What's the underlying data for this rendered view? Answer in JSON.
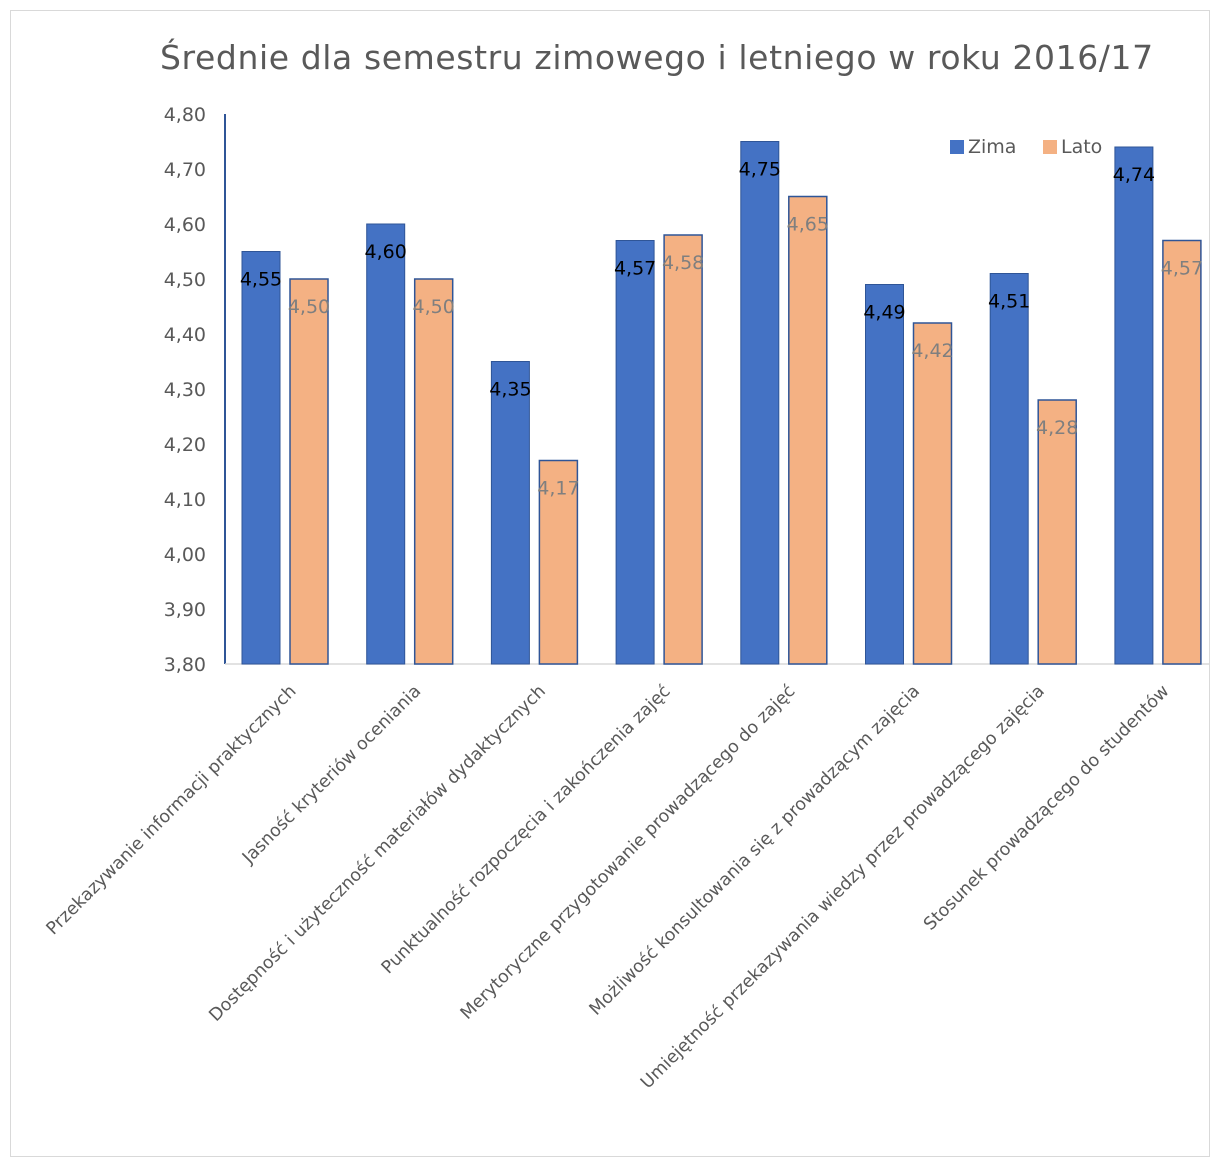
{
  "chart_data": {
    "type": "bar",
    "title": "Średnie dla semestru zimowego i letniego w roku 2016/17",
    "categories": [
      "Przekazywanie informacji praktycznych",
      "Jasność kryteriów oceniania",
      "Dostępność i użyteczność materiałów dydaktycznych",
      "Punktualność rozpoczęcia i zakończenia zajęć",
      "Merytoryczne przygotowanie prowadzącego do zajęć",
      "Możliwość konsultowania się z prowadzącym zajęcia",
      "Umiejętność przekazywania wiedzy przez prowadzącego zajęcia",
      "Stosunek prowadzącego do studentów"
    ],
    "series": [
      {
        "name": "Zima",
        "color": "#4472c4",
        "values": [
          4.55,
          4.6,
          4.35,
          4.57,
          4.75,
          4.49,
          4.51,
          4.74
        ],
        "labels": [
          "4,55",
          "4,60",
          "4,35",
          "4,57",
          "4,75",
          "4,49",
          "4,51",
          "4,74"
        ]
      },
      {
        "name": "Lato",
        "color": "#f4b183",
        "values": [
          4.5,
          4.5,
          4.17,
          4.58,
          4.65,
          4.42,
          4.28,
          4.57
        ],
        "labels": [
          "4,50",
          "4,50",
          "4,17",
          "4,58",
          "4,65",
          "4,42",
          "4,28",
          "4,57"
        ]
      }
    ],
    "ylim": [
      3.8,
      4.8
    ],
    "yticks": [
      "3,80",
      "3,90",
      "4,00",
      "4,10",
      "4,20",
      "4,30",
      "4,40",
      "4,50",
      "4,60",
      "4,70",
      "4,80"
    ],
    "grid": false,
    "legend_position": "top-right"
  }
}
